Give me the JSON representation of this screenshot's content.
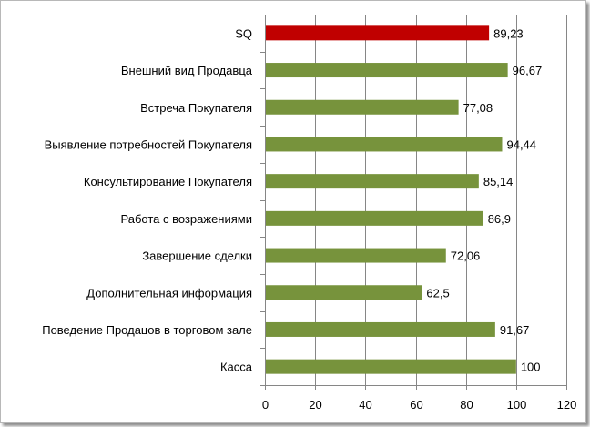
{
  "chart_data": {
    "type": "bar",
    "orientation": "horizontal",
    "categories": [
      "SQ",
      "Внешний вид Продавца",
      "Встреча Покупателя",
      "Выявление потребностей Покупателя",
      "Консультирование Покупателя",
      "Работа с возражениями",
      "Завершение сделки",
      "Дополнительная информация",
      "Поведение Продацов в торговом зале",
      "Касса"
    ],
    "values": [
      89.23,
      96.67,
      77.08,
      94.44,
      85.14,
      86.9,
      72.06,
      62.5,
      91.67,
      100
    ],
    "value_labels": [
      "89,23",
      "96,67",
      "77,08",
      "94,44",
      "85,14",
      "86,9",
      "72,06",
      "62,5",
      "91,67",
      "100"
    ],
    "bar_colors": [
      "#c00000",
      "#77933c",
      "#77933c",
      "#77933c",
      "#77933c",
      "#77933c",
      "#77933c",
      "#77933c",
      "#77933c",
      "#77933c"
    ],
    "xlim": [
      0,
      120
    ],
    "xticks": [
      0,
      20,
      40,
      60,
      80,
      100,
      120
    ],
    "grid": true,
    "legend": "none",
    "title": "",
    "xlabel": "",
    "ylabel": ""
  },
  "colors": {
    "highlight": "#c00000",
    "series": "#77933c",
    "gridline": "#868686"
  }
}
